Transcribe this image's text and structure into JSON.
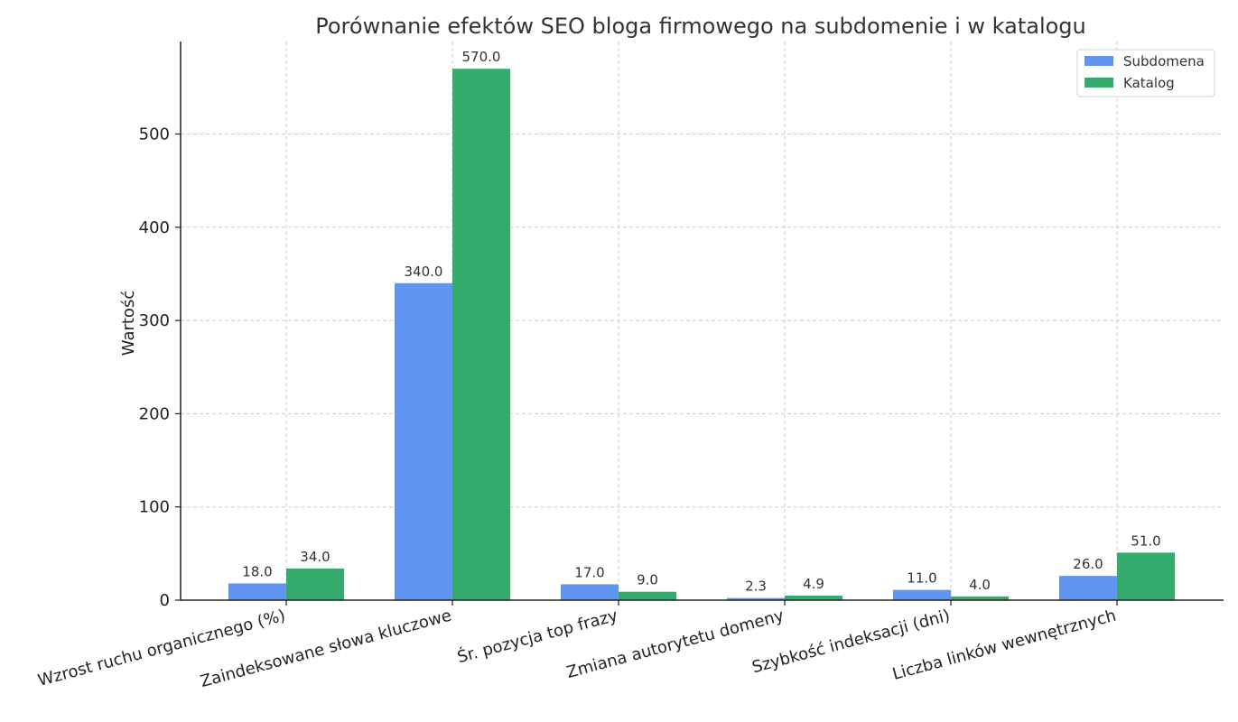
{
  "chart_data": {
    "type": "bar",
    "title": "Porównanie efektów SEO bloga firmowego na subdomenie i w katalogu",
    "xlabel": "",
    "ylabel": "Wartość",
    "ylim": [
      0,
      600
    ],
    "yticks": [
      0,
      100,
      200,
      300,
      400,
      500
    ],
    "grid": true,
    "legend_position": "top-right",
    "categories": [
      "Wzrost ruchu organicznego (%)",
      "Zaindeksowane słowa kluczowe",
      "Śr. pozycja top frazy",
      "Zmiana autorytetu domeny",
      "Szybkość indeksacji (dni)",
      "Liczba linków wewnętrznych"
    ],
    "series": [
      {
        "name": "Subdomena",
        "color": "#6096f2",
        "values": [
          18.0,
          340.0,
          17.0,
          2.3,
          11.0,
          26.0
        ]
      },
      {
        "name": "Katalog",
        "color": "#35ab6e",
        "values": [
          34.0,
          570.0,
          9.0,
          4.9,
          4.0,
          51.0
        ]
      }
    ]
  }
}
